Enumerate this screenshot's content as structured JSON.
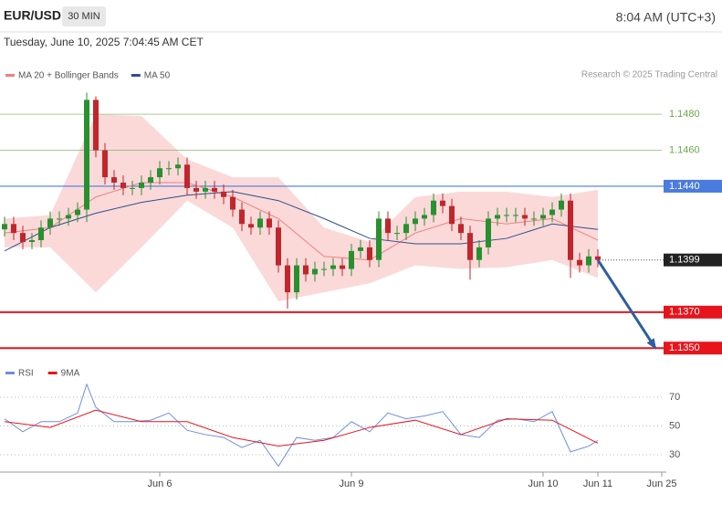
{
  "header": {
    "symbol": "EUR/USD",
    "interval": "30 MIN",
    "clock": "8:04 AM (UTC+3)",
    "timestamp": "Tuesday, June 10, 2025 7:04:45 AM CET",
    "credit": "Research © 2025 Trading Central"
  },
  "chart_data": [
    {
      "type": "candlestick",
      "legend": [
        {
          "name": "MA 20 + Bollinger Bands",
          "color": "#f08080"
        },
        {
          "name": "MA 50",
          "color": "#2d4f8c"
        }
      ],
      "up_color": "#27912f",
      "down_color": "#c0262b",
      "xlim": [
        -0.5,
        72.5
      ],
      "xticks": [
        {
          "value": 17,
          "label": "Jun 6"
        },
        {
          "value": 38,
          "label": "Jun 9"
        },
        {
          "value": 59,
          "label": "Jun 10"
        },
        {
          "value": 65,
          "label": "Jun 11"
        },
        {
          "value": 72,
          "label": "Jun 25"
        }
      ],
      "ylim": [
        1.1343,
        1.1508
      ],
      "open": [
        1.1416,
        1.1419,
        1.1414,
        1.1409,
        1.141,
        1.1417,
        1.1422,
        1.1422,
        1.1424,
        1.1427,
        1.1488,
        1.146,
        1.1445,
        1.1442,
        1.1439,
        1.1439,
        1.1442,
        1.1445,
        1.145,
        1.145,
        1.1452,
        1.1439,
        1.1437,
        1.1439,
        1.1437,
        1.1434,
        1.1427,
        1.1419,
        1.1417,
        1.1422,
        1.1417,
        1.1396,
        1.1381,
        1.1396,
        1.1391,
        1.1394,
        1.1394,
        1.1396,
        1.1394,
        1.1404,
        1.1406,
        1.1399,
        1.1422,
        1.1414,
        1.1414,
        1.1419,
        1.1422,
        1.1424,
        1.1432,
        1.1429,
        1.1419,
        1.1414,
        1.1399,
        1.1406,
        1.1422,
        1.1424,
        1.1424,
        1.1424,
        1.1422,
        1.1422,
        1.1424,
        1.1427,
        1.1432,
        1.1399,
        1.1396,
        1.1401
      ],
      "high": [
        1.1423,
        1.1423,
        1.1418,
        1.1414,
        1.1421,
        1.1426,
        1.1426,
        1.1428,
        1.1431,
        1.1492,
        1.149,
        1.1464,
        1.1449,
        1.1446,
        1.1443,
        1.1446,
        1.1449,
        1.1454,
        1.1454,
        1.1456,
        1.1456,
        1.1443,
        1.1443,
        1.1443,
        1.1441,
        1.1438,
        1.1431,
        1.1423,
        1.1426,
        1.1426,
        1.1421,
        1.14,
        1.14,
        1.14,
        1.1398,
        1.1398,
        1.14,
        1.14,
        1.1408,
        1.141,
        1.141,
        1.1426,
        1.1426,
        1.1418,
        1.1423,
        1.1426,
        1.1428,
        1.1436,
        1.1436,
        1.1433,
        1.1423,
        1.1418,
        1.141,
        1.1426,
        1.1428,
        1.1428,
        1.1428,
        1.1428,
        1.1426,
        1.1428,
        1.1431,
        1.1436,
        1.1436,
        1.1403,
        1.1405,
        1.1405
      ],
      "low": [
        1.1412,
        1.141,
        1.1405,
        1.1405,
        1.1406,
        1.1413,
        1.1418,
        1.1418,
        1.142,
        1.142,
        1.1456,
        1.1441,
        1.1438,
        1.1435,
        1.1435,
        1.1435,
        1.1438,
        1.1441,
        1.1446,
        1.1446,
        1.1435,
        1.1433,
        1.1433,
        1.1433,
        1.143,
        1.1423,
        1.1415,
        1.1413,
        1.1413,
        1.1413,
        1.1392,
        1.1372,
        1.1377,
        1.1387,
        1.1387,
        1.139,
        1.139,
        1.139,
        1.139,
        1.14,
        1.1395,
        1.1395,
        1.141,
        1.141,
        1.141,
        1.1415,
        1.1418,
        1.142,
        1.1425,
        1.1415,
        1.141,
        1.1388,
        1.1395,
        1.1402,
        1.1418,
        1.142,
        1.142,
        1.1418,
        1.1418,
        1.1418,
        1.142,
        1.1423,
        1.1389,
        1.1392,
        1.1392,
        1.1395
      ],
      "close": [
        1.1419,
        1.1414,
        1.1409,
        1.141,
        1.1417,
        1.1422,
        1.1422,
        1.1424,
        1.1427,
        1.1488,
        1.146,
        1.1445,
        1.1442,
        1.1439,
        1.1439,
        1.1442,
        1.1445,
        1.145,
        1.145,
        1.1452,
        1.1439,
        1.1437,
        1.1439,
        1.1437,
        1.1434,
        1.1427,
        1.1419,
        1.1417,
        1.1422,
        1.1417,
        1.1396,
        1.1381,
        1.1396,
        1.1391,
        1.1394,
        1.1394,
        1.1396,
        1.1394,
        1.1404,
        1.1406,
        1.1399,
        1.1422,
        1.1414,
        1.1414,
        1.1419,
        1.1422,
        1.1424,
        1.1432,
        1.1429,
        1.1419,
        1.1414,
        1.1399,
        1.1406,
        1.1422,
        1.1424,
        1.1424,
        1.1424,
        1.1422,
        1.1422,
        1.1424,
        1.1427,
        1.1432,
        1.1399,
        1.1396,
        1.1401,
        1.1399
      ],
      "overlays": {
        "x": [
          0,
          5,
          10,
          15,
          20,
          25,
          30,
          35,
          40,
          45,
          50,
          55,
          60,
          65
        ],
        "band_color": "#fbd9d9",
        "upper": [
          1.1422,
          1.1424,
          1.148,
          1.1479,
          1.1455,
          1.1445,
          1.1445,
          1.1417,
          1.1409,
          1.1434,
          1.1437,
          1.1437,
          1.1434,
          1.1438
        ],
        "lower": [
          1.1406,
          1.1406,
          1.1381,
          1.1406,
          1.1432,
          1.1417,
          1.1376,
          1.1381,
          1.1386,
          1.1396,
          1.1394,
          1.1395,
          1.1399,
          1.1389
        ],
        "ma20": [
          1.1414,
          1.1417,
          1.1434,
          1.1442,
          1.1442,
          1.1434,
          1.1422,
          1.1401,
          1.1399,
          1.1414,
          1.1422,
          1.1419,
          1.1422,
          1.141
        ],
        "ma50": [
          1.1404,
          1.1417,
          1.1425,
          1.1431,
          1.1435,
          1.1437,
          1.1432,
          1.1422,
          1.1411,
          1.1408,
          1.1408,
          1.1411,
          1.1419,
          1.1416
        ]
      },
      "levels": [
        {
          "value": 1.148,
          "label": "1.1480",
          "color": "#6aa84f",
          "style": "text"
        },
        {
          "value": 1.146,
          "label": "1.1460",
          "color": "#6aa84f",
          "style": "text"
        },
        {
          "value": 1.144,
          "label": "1.1440",
          "color": "#4a7be0",
          "style": "box"
        },
        {
          "value": 1.1399,
          "color": "#222222",
          "style": "current"
        },
        {
          "value": 1.137,
          "label": "1.1370",
          "color": "#e8141b",
          "style": "box"
        },
        {
          "value": 1.135,
          "label": "1.1350",
          "color": "#e8141b",
          "style": "box"
        }
      ],
      "arrow": {
        "x": [
          65,
          71.3
        ],
        "y": [
          1.1399,
          1.135
        ],
        "color": "#2e5f9e"
      }
    },
    {
      "type": "line",
      "xlim": [
        -0.5,
        72.5
      ],
      "ylim": [
        19.2,
        82.7
      ],
      "yticks": [
        30,
        50,
        70
      ],
      "grid": true,
      "series": [
        {
          "name": "RSI",
          "color": "#6e8ee0",
          "x": [
            0,
            2,
            4,
            6,
            8,
            9,
            10,
            12,
            14,
            16,
            18,
            20,
            22,
            24,
            26,
            28,
            30,
            32,
            34,
            36,
            38,
            40,
            42,
            44,
            46,
            48,
            50,
            52,
            54,
            56,
            58,
            60,
            62,
            64,
            65
          ],
          "values": [
            55,
            46,
            53,
            53,
            59,
            79,
            63,
            53,
            53,
            54,
            59,
            47,
            44,
            42,
            35,
            40,
            22,
            42,
            40,
            42,
            53,
            46,
            59,
            55,
            57,
            60,
            44,
            42,
            54,
            55,
            53,
            60,
            32,
            36,
            40
          ]
        },
        {
          "name": "9MA",
          "color": "#e8141b",
          "x": [
            0,
            5,
            10,
            15,
            20,
            25,
            30,
            35,
            40,
            45,
            50,
            55,
            60,
            65
          ],
          "values": [
            53,
            49,
            61,
            53,
            53,
            42,
            36,
            40,
            49,
            54,
            44,
            55,
            54,
            38
          ]
        }
      ]
    }
  ]
}
